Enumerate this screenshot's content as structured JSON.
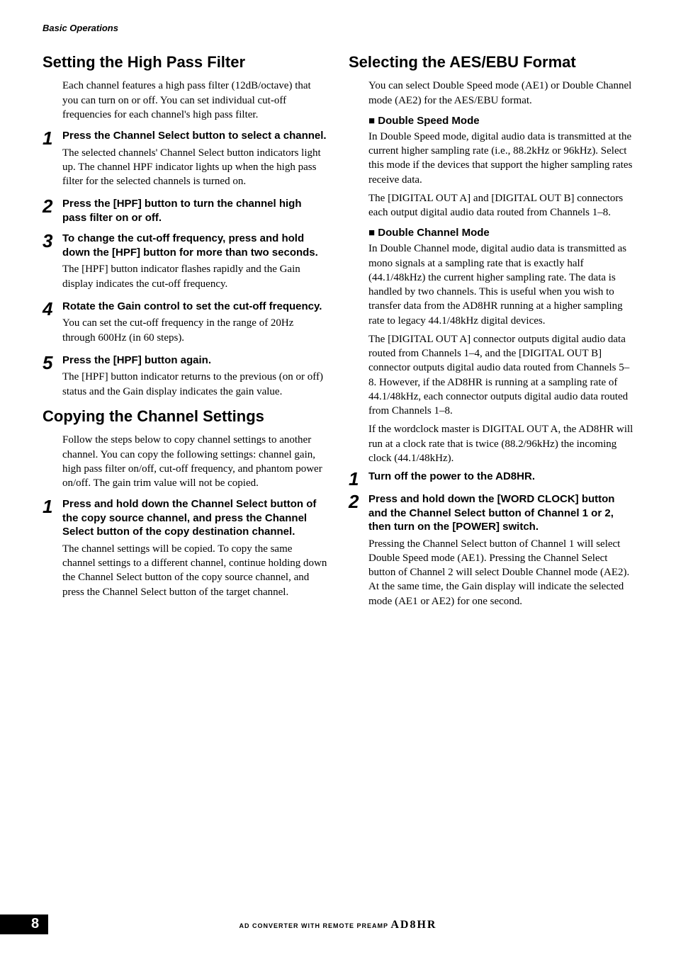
{
  "runningHead": "Basic Operations",
  "pageNumber": "8",
  "footer": {
    "tagline": "AD CONVERTER WITH REMOTE PREAMP",
    "model": "AD8HR"
  },
  "left": {
    "section1": {
      "title": "Setting the High Pass Filter",
      "intro": "Each channel features a high pass filter (12dB/octave) that you can turn on or off. You can set individual cut-off frequencies for each channel's high pass filter.",
      "steps": [
        {
          "num": "1",
          "head": "Press the Channel Select button to select a channel.",
          "text": "The selected channels' Channel Select button indicators light up. The channel HPF indicator lights up when the high pass filter for the selected channels is turned on."
        },
        {
          "num": "2",
          "head": "Press the [HPF] button to turn the channel high pass filter on or off.",
          "text": ""
        },
        {
          "num": "3",
          "head": "To change the cut-off frequency, press and hold down the [HPF] button for more than two seconds.",
          "text": "The [HPF] button indicator flashes rapidly and the Gain display indicates the cut-off frequency."
        },
        {
          "num": "4",
          "head": "Rotate the Gain control to set the cut-off frequency.",
          "text": "You can set the cut-off frequency in the range of 20Hz through 600Hz (in 60 steps)."
        },
        {
          "num": "5",
          "head": "Press the [HPF] button again.",
          "text": "The [HPF] button indicator returns to the previous (on or off) status and the Gain display indicates the gain value."
        }
      ]
    },
    "section2": {
      "title": "Copying the Channel Settings",
      "intro": "Follow the steps below to copy channel settings to another channel. You can copy the following settings: channel gain, high pass filter on/off, cut-off frequency, and phantom power on/off. The gain trim value will not be copied.",
      "steps": [
        {
          "num": "1",
          "head": "Press and hold down the Channel Select button of the copy source channel, and press the Channel Select button of the copy destination channel.",
          "text": "The channel settings will be copied. To copy the same channel settings to a different channel, continue holding down the Channel Select button of the copy source channel, and press the Channel Select button of the target channel."
        }
      ]
    }
  },
  "right": {
    "section1": {
      "title": "Selecting the AES/EBU Format",
      "intro": "You can select Double Speed mode (AE1) or Double Channel mode (AE2) for the AES/EBU format.",
      "subs": [
        {
          "head": "Double Speed Mode",
          "paras": [
            "In Double Speed mode, digital audio data is transmitted at the current higher sampling rate (i.e., 88.2kHz or 96kHz). Select this mode if the devices that support the higher sampling rates receive data.",
            "The [DIGITAL OUT A] and [DIGITAL OUT B] connectors each output digital audio data routed from Channels 1–8."
          ]
        },
        {
          "head": "Double Channel Mode",
          "paras": [
            "In Double Channel mode, digital audio data is transmitted as mono signals at a sampling rate that is exactly half (44.1/48kHz) the current higher sampling rate. The data is handled by two channels. This is useful when you wish to transfer data from the AD8HR running at a higher sampling rate to legacy 44.1/48kHz digital devices.",
            "The [DIGITAL OUT A] connector outputs digital audio data routed from Channels 1–4, and the [DIGITAL OUT B] connector outputs digital audio data routed from Channels 5–8. However, if the AD8HR is running at a sampling rate of 44.1/48kHz, each connector outputs digital audio data routed from Channels 1–8.",
            "If the wordclock master is DIGITAL OUT A, the AD8HR will run at a clock rate that is twice (88.2/96kHz) the incoming clock (44.1/48kHz)."
          ]
        }
      ],
      "steps": [
        {
          "num": "1",
          "head": "Turn off the power to the AD8HR.",
          "text": ""
        },
        {
          "num": "2",
          "head": "Press and hold down the [WORD CLOCK] button and the Channel Select button of Channel 1 or 2, then turn on the [POWER] switch.",
          "text": "Pressing the Channel Select button of Channel 1 will select Double Speed mode (AE1). Pressing the Channel Select button of Channel 2 will select Double Channel mode (AE2). At the same time, the Gain display will indicate the selected mode (AE1 or AE2) for one second."
        }
      ]
    }
  }
}
